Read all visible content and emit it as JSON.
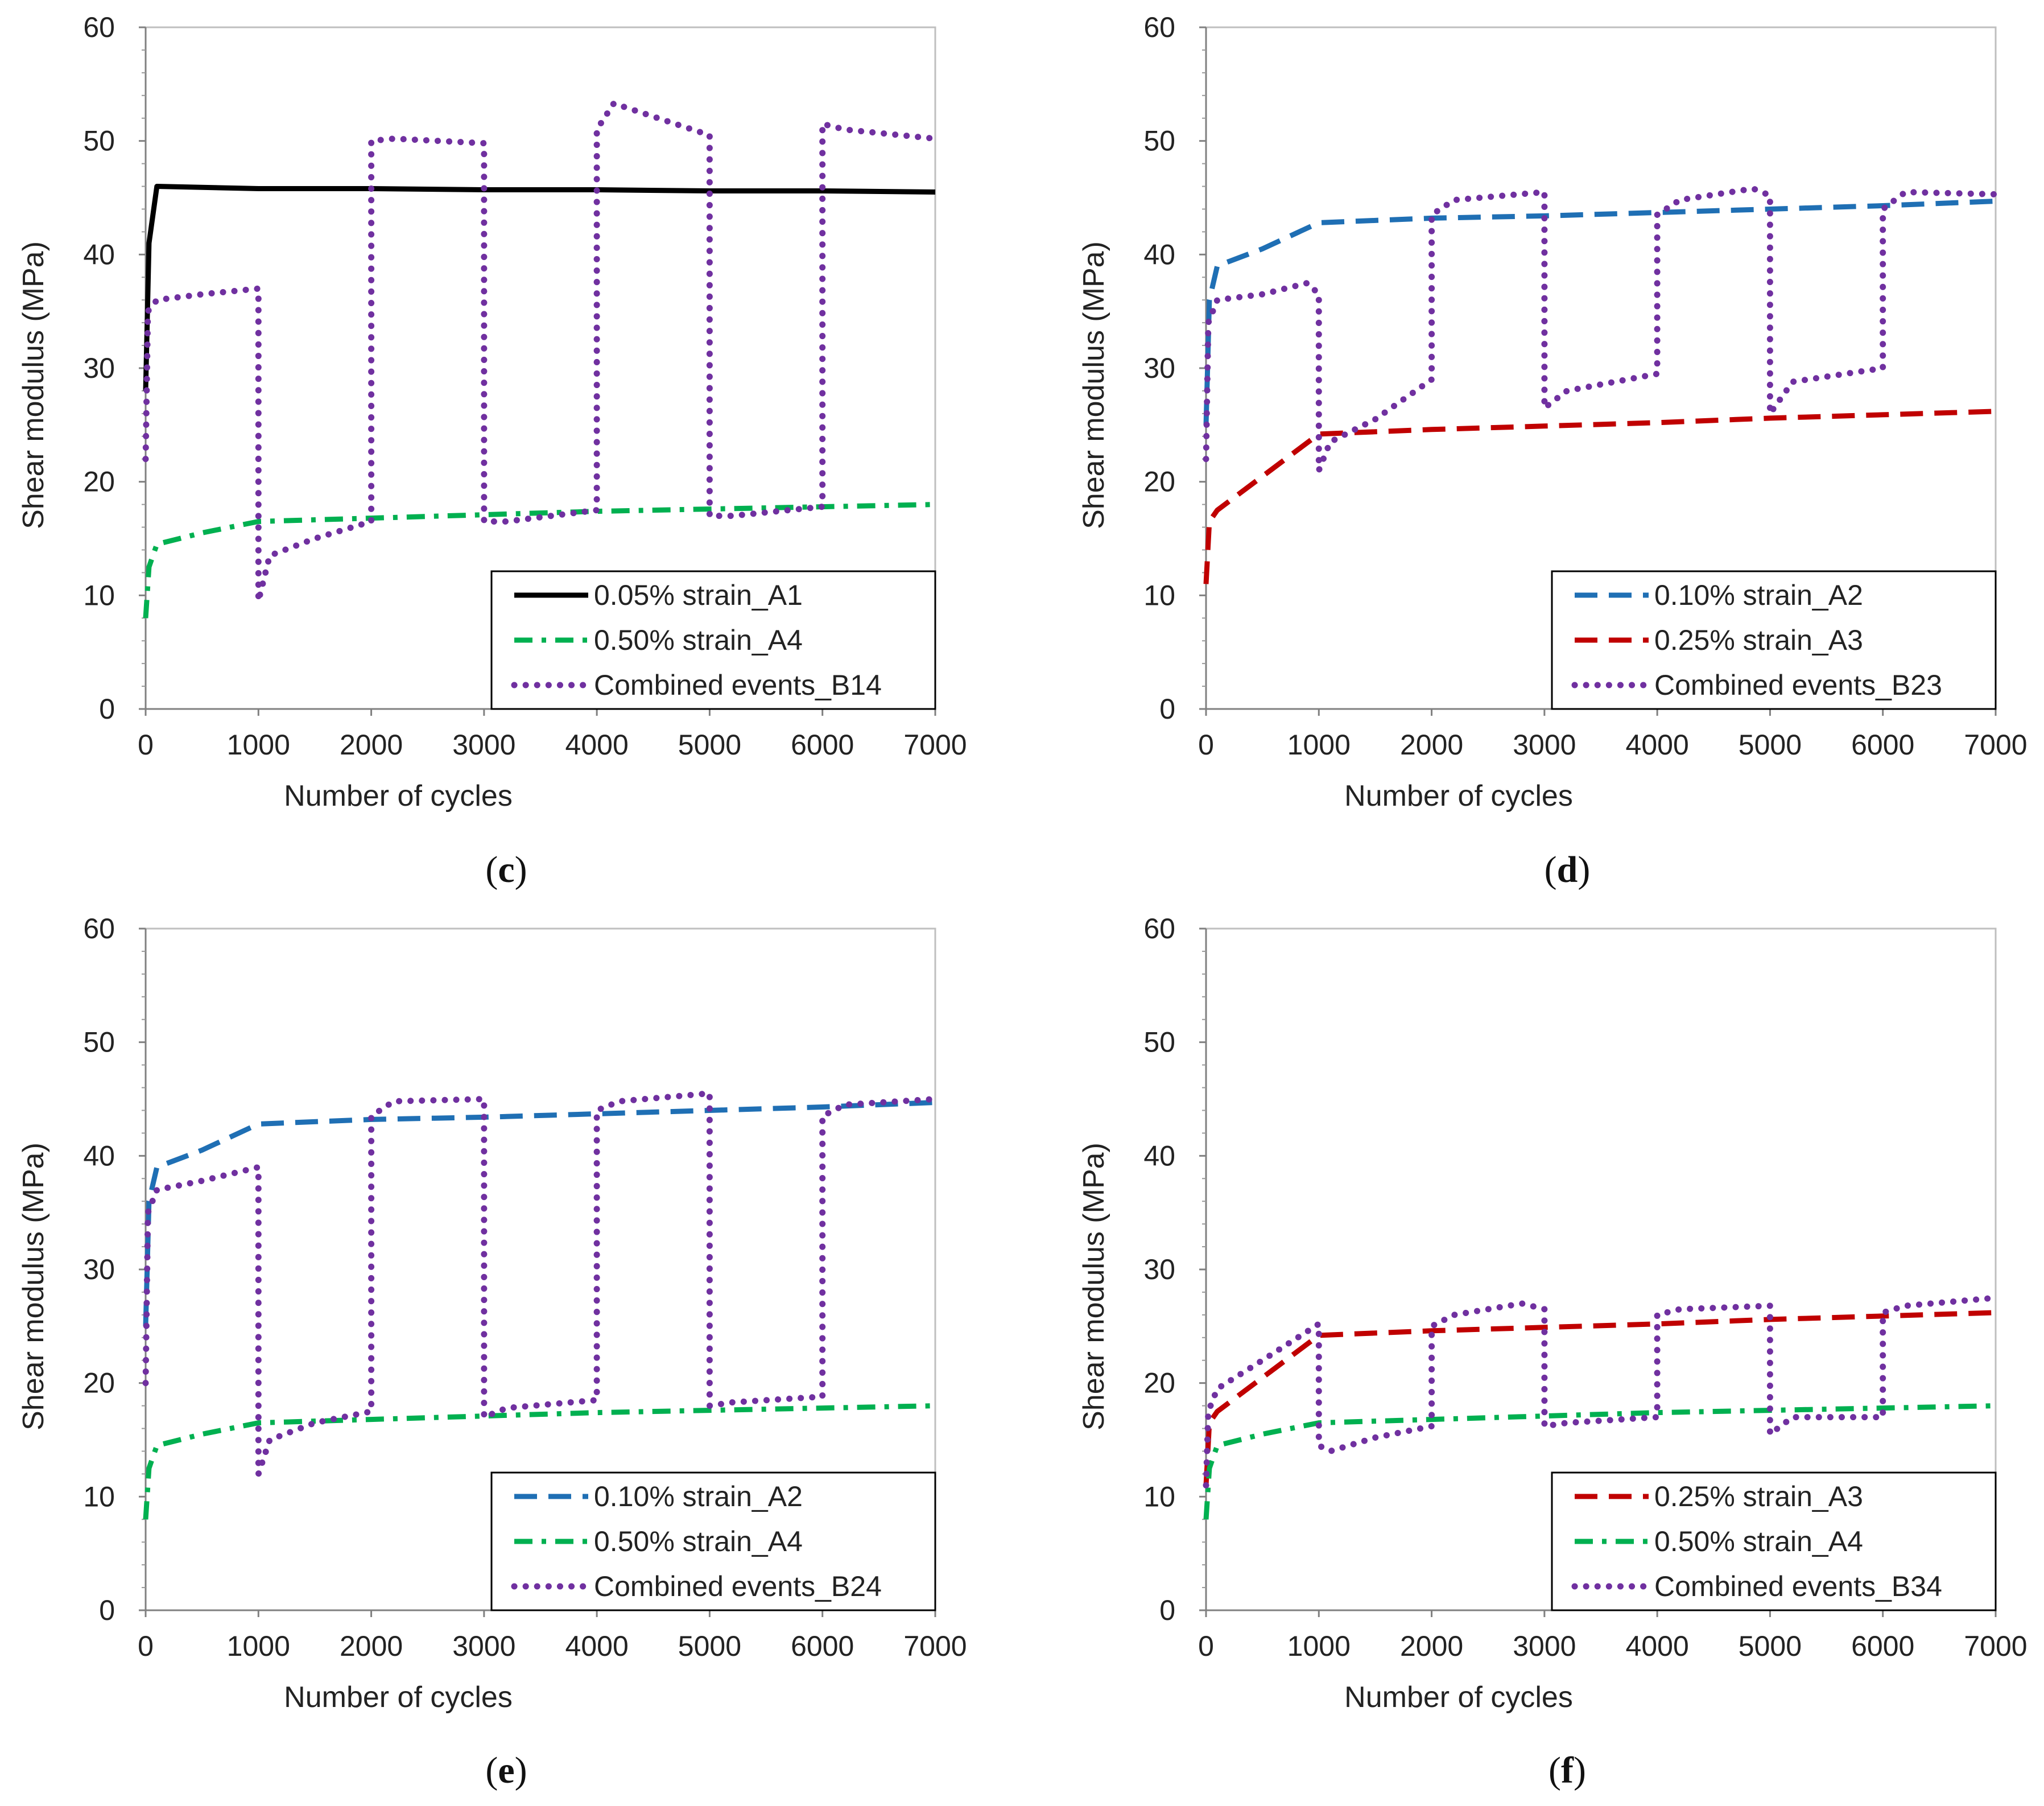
{
  "figure": {
    "colors": {
      "A1": "#000000",
      "A2": "#1f6fb4",
      "A3": "#c00000",
      "A4": "#00b050",
      "combined": "#7030a0"
    }
  },
  "chart_data": [
    {
      "type": "line",
      "panel": "c",
      "xlabel": "Number of cycles",
      "ylabel": "Shear modulus (MPa)",
      "xlim": [
        0,
        7000
      ],
      "ylim": [
        0,
        60
      ],
      "x_ticks": [
        "0",
        "1000",
        "2000",
        "3000",
        "4000",
        "5000",
        "6000",
        "7000"
      ],
      "y_ticks": [
        "0",
        "10",
        "20",
        "30",
        "40",
        "50",
        "60"
      ],
      "grid": false,
      "legend_position": "bottom-right",
      "series": [
        {
          "name": "0.05% strain_A1",
          "style": "solid",
          "color": "#000000",
          "x": [
            0,
            30,
            100,
            1000,
            2000,
            3000,
            4000,
            5000,
            6000,
            7000
          ],
          "y": [
            28,
            41,
            46,
            45.8,
            45.8,
            45.7,
            45.7,
            45.6,
            45.6,
            45.5
          ]
        },
        {
          "name": "0.50% strain_A4",
          "style": "dashdot",
          "color": "#00b050",
          "x": [
            0,
            30,
            100,
            500,
            1000,
            2000,
            3000,
            4000,
            5000,
            6000,
            7000
          ],
          "y": [
            8,
            12.5,
            14.5,
            15.5,
            16.5,
            16.8,
            17.1,
            17.4,
            17.6,
            17.8,
            18
          ]
        },
        {
          "name": "Combined events_B14",
          "style": "dotted",
          "color": "#7030a0",
          "x": [
            0,
            20,
            100,
            500,
            1000,
            1000,
            1100,
            1500,
            2000,
            2000,
            2200,
            3000,
            3000,
            3200,
            4000,
            4000,
            4150,
            5000,
            5000,
            5200,
            6000,
            6000,
            6200,
            7000
          ],
          "y": [
            22,
            35,
            36,
            36.5,
            37,
            9.5,
            13.5,
            15,
            16.5,
            50,
            50.2,
            49.8,
            16.5,
            16.5,
            17.5,
            51,
            53.3,
            50.5,
            17,
            17,
            17.8,
            51.5,
            51,
            50.2
          ]
        }
      ]
    },
    {
      "type": "line",
      "panel": "d",
      "xlabel": "Number of cycles",
      "ylabel": "Shear modulus (MPa)",
      "xlim": [
        0,
        7000
      ],
      "ylim": [
        0,
        60
      ],
      "x_ticks": [
        "0",
        "1000",
        "2000",
        "3000",
        "4000",
        "5000",
        "6000",
        "7000"
      ],
      "y_ticks": [
        "0",
        "10",
        "20",
        "30",
        "40",
        "50",
        "60"
      ],
      "grid": false,
      "legend_position": "bottom-right",
      "series": [
        {
          "name": "0.10% strain_A2",
          "style": "dashed",
          "color": "#1f6fb4",
          "x": [
            0,
            30,
            100,
            500,
            1000,
            2000,
            3000,
            4000,
            5000,
            6000,
            7000
          ],
          "y": [
            25,
            36,
            39,
            40.5,
            42.8,
            43.2,
            43.4,
            43.7,
            44,
            44.3,
            44.7
          ]
        },
        {
          "name": "0.25% strain_A3",
          "style": "dashed",
          "color": "#c00000",
          "x": [
            0,
            30,
            100,
            1000,
            2000,
            3000,
            4000,
            5000,
            6000,
            7000
          ],
          "y": [
            11,
            16.5,
            17.5,
            24.2,
            24.6,
            24.9,
            25.2,
            25.6,
            25.9,
            26.2
          ]
        },
        {
          "name": "Combined events_B23",
          "style": "dotted",
          "color": "#7030a0",
          "x": [
            0,
            20,
            100,
            500,
            900,
            1000,
            1000,
            1100,
            1500,
            2000,
            2000,
            2200,
            3000,
            3000,
            3200,
            4000,
            4000,
            4200,
            4850,
            5000,
            5000,
            5200,
            6000,
            6000,
            6200,
            7000
          ],
          "y": [
            22,
            34,
            36,
            36.5,
            37.5,
            36.5,
            21,
            23.5,
            25.5,
            29,
            43.5,
            44.8,
            45.5,
            26.5,
            28,
            29.5,
            43.5,
            44.8,
            45.8,
            45.2,
            26,
            28.8,
            30,
            44,
            45.5,
            45.3
          ]
        }
      ]
    },
    {
      "type": "line",
      "panel": "e",
      "xlabel": "Number of cycles",
      "ylabel": "Shear modulus (MPa)",
      "xlim": [
        0,
        7000
      ],
      "ylim": [
        0,
        60
      ],
      "x_ticks": [
        "0",
        "1000",
        "2000",
        "3000",
        "4000",
        "5000",
        "6000",
        "7000"
      ],
      "y_ticks": [
        "0",
        "10",
        "20",
        "30",
        "40",
        "50",
        "60"
      ],
      "grid": false,
      "legend_position": "bottom-right",
      "series": [
        {
          "name": "0.10% strain_A2",
          "style": "dashed",
          "color": "#1f6fb4",
          "x": [
            0,
            30,
            100,
            500,
            1000,
            2000,
            3000,
            4000,
            5000,
            6000,
            7000
          ],
          "y": [
            25,
            36,
            39,
            40.5,
            42.8,
            43.2,
            43.4,
            43.7,
            44,
            44.3,
            44.7
          ]
        },
        {
          "name": "0.50% strain_A4",
          "style": "dashdot",
          "color": "#00b050",
          "x": [
            0,
            30,
            100,
            500,
            1000,
            2000,
            3000,
            4000,
            5000,
            6000,
            7000
          ],
          "y": [
            8,
            12.5,
            14.5,
            15.5,
            16.5,
            16.8,
            17.1,
            17.4,
            17.6,
            17.8,
            18
          ]
        },
        {
          "name": "Combined events_B24",
          "style": "dotted",
          "color": "#7030a0",
          "x": [
            0,
            20,
            100,
            500,
            1000,
            1000,
            1100,
            1500,
            2000,
            2000,
            2200,
            3000,
            3000,
            3200,
            4000,
            4000,
            4200,
            5000,
            5000,
            5200,
            6000,
            6000,
            6200,
            7000
          ],
          "y": [
            20,
            35,
            37,
            37.8,
            39,
            12,
            15,
            16.5,
            17.5,
            43.5,
            44.8,
            45,
            17,
            17.8,
            18.5,
            44,
            44.8,
            45.5,
            18,
            18.3,
            18.8,
            43.5,
            44.5,
            45
          ]
        }
      ]
    },
    {
      "type": "line",
      "panel": "f",
      "xlabel": "Number of cycles",
      "ylabel": "Shear modulus (MPa)",
      "xlim": [
        0,
        7000
      ],
      "ylim": [
        0,
        60
      ],
      "x_ticks": [
        "0",
        "1000",
        "2000",
        "3000",
        "4000",
        "5000",
        "6000",
        "7000"
      ],
      "y_ticks": [
        "0",
        "10",
        "20",
        "30",
        "40",
        "50",
        "60"
      ],
      "grid": false,
      "legend_position": "bottom-right",
      "series": [
        {
          "name": "0.25% strain_A3",
          "style": "dashed",
          "color": "#c00000",
          "x": [
            0,
            30,
            100,
            1000,
            2000,
            3000,
            4000,
            5000,
            6000,
            7000
          ],
          "y": [
            11,
            16.5,
            17.5,
            24.2,
            24.6,
            24.9,
            25.2,
            25.6,
            25.9,
            26.2
          ]
        },
        {
          "name": "0.50% strain_A4",
          "style": "dashdot",
          "color": "#00b050",
          "x": [
            0,
            30,
            100,
            500,
            1000,
            2000,
            3000,
            4000,
            5000,
            6000,
            7000
          ],
          "y": [
            8,
            12.5,
            14.5,
            15.5,
            16.5,
            16.8,
            17.1,
            17.4,
            17.6,
            17.8,
            18
          ]
        },
        {
          "name": "Combined events_B34",
          "style": "dotted",
          "color": "#7030a0",
          "x": [
            0,
            20,
            100,
            500,
            1000,
            1000,
            1100,
            1500,
            2000,
            2000,
            2200,
            2800,
            3000,
            3000,
            3200,
            4000,
            4000,
            4200,
            5000,
            5000,
            5200,
            6000,
            6000,
            6200,
            7000
          ],
          "y": [
            11,
            17.5,
            19.5,
            22,
            25.2,
            14.5,
            14,
            15.2,
            16.2,
            25,
            26,
            27,
            26.5,
            16.2,
            16.5,
            17,
            26,
            26.5,
            26.8,
            15.5,
            17,
            17,
            26.2,
            26.8,
            27.5
          ]
        }
      ]
    }
  ],
  "panel_labels": [
    {
      "open": "(",
      "letter": "c",
      "close": ")"
    },
    {
      "open": "(",
      "letter": "d",
      "close": ")"
    },
    {
      "open": "(",
      "letter": "e",
      "close": ")"
    },
    {
      "open": "(",
      "letter": "f",
      "close": ")"
    }
  ]
}
